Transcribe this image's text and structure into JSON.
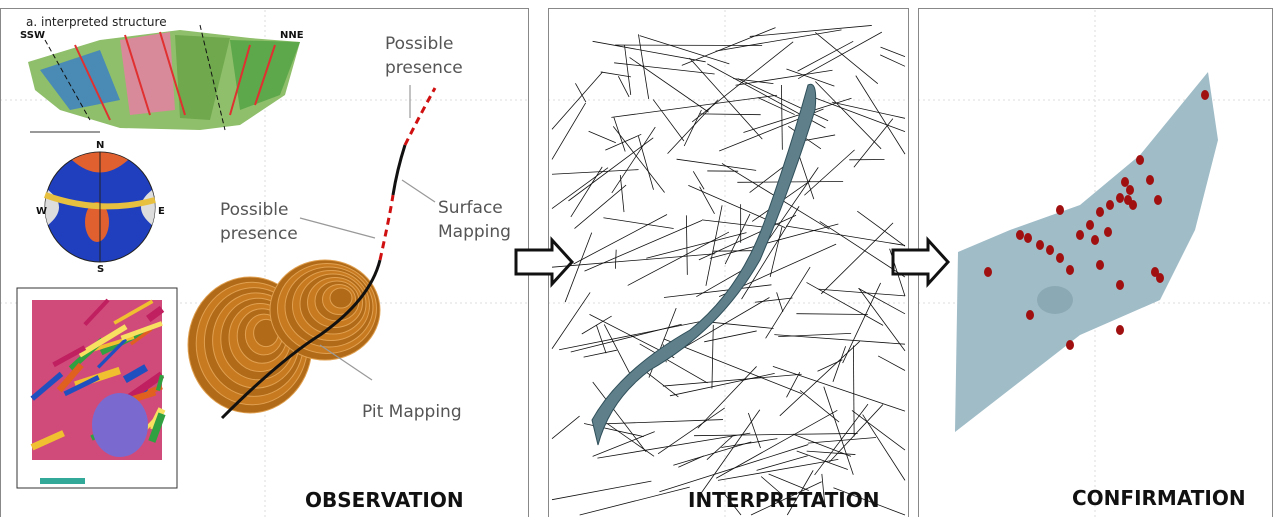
{
  "panels": [
    {
      "label": "OBSERVATION",
      "inset_title": "a. interpreted structure",
      "cross_section_labels": [
        "SSW",
        "NNE"
      ],
      "stereonet_labels": [
        "N",
        "S",
        "W",
        "E"
      ],
      "annotations": {
        "upper_possible": "Possible presence",
        "lower_possible": "Possible presence",
        "surface": "Surface Mapping",
        "pit": "Pit Mapping"
      }
    },
    {
      "label": "INTERPRETATION"
    },
    {
      "label": "CONFIRMATION"
    }
  ]
}
